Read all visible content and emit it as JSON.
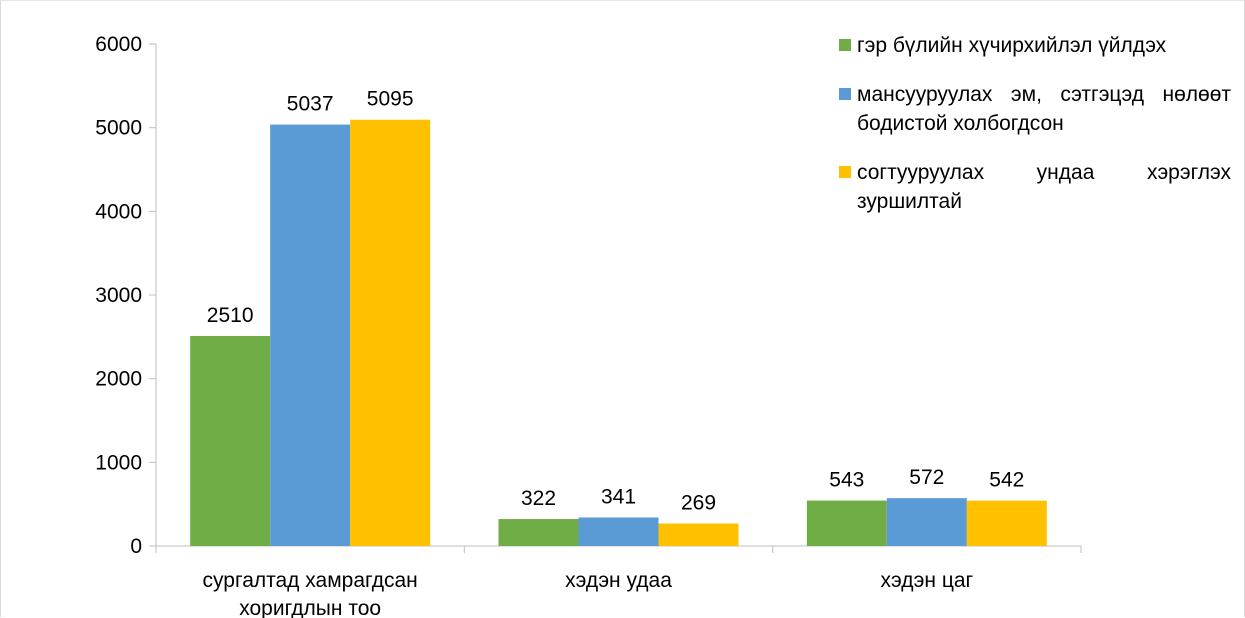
{
  "chart_data": {
    "type": "bar",
    "title": "",
    "xlabel": "",
    "ylabel": "",
    "categories": [
      [
        "сургалтад хамрагдсан",
        "хоригдлын тоо"
      ],
      [
        "хэдэн удаа"
      ],
      [
        "хэдэн цаг"
      ]
    ],
    "series": [
      {
        "name": "гэр бүлийн хүчирхийлэл үйлдэх",
        "color": "#70ad47",
        "values": [
          2510,
          322,
          543
        ]
      },
      {
        "name": "мансууруулах эм, сэтгэцэд нөлөөт бодистой холбогдсон",
        "color": "#5b9bd5",
        "values": [
          5037,
          341,
          572
        ]
      },
      {
        "name": "согтууруулах ундаа хэрэглэх зуршилтай",
        "color": "#ffc000",
        "values": [
          5095,
          269,
          542
        ]
      }
    ],
    "ylim": [
      0,
      6000
    ],
    "yticks": [
      0,
      1000,
      2000,
      3000,
      4000,
      5000,
      6000
    ],
    "grid": false,
    "legend": "top-right"
  }
}
